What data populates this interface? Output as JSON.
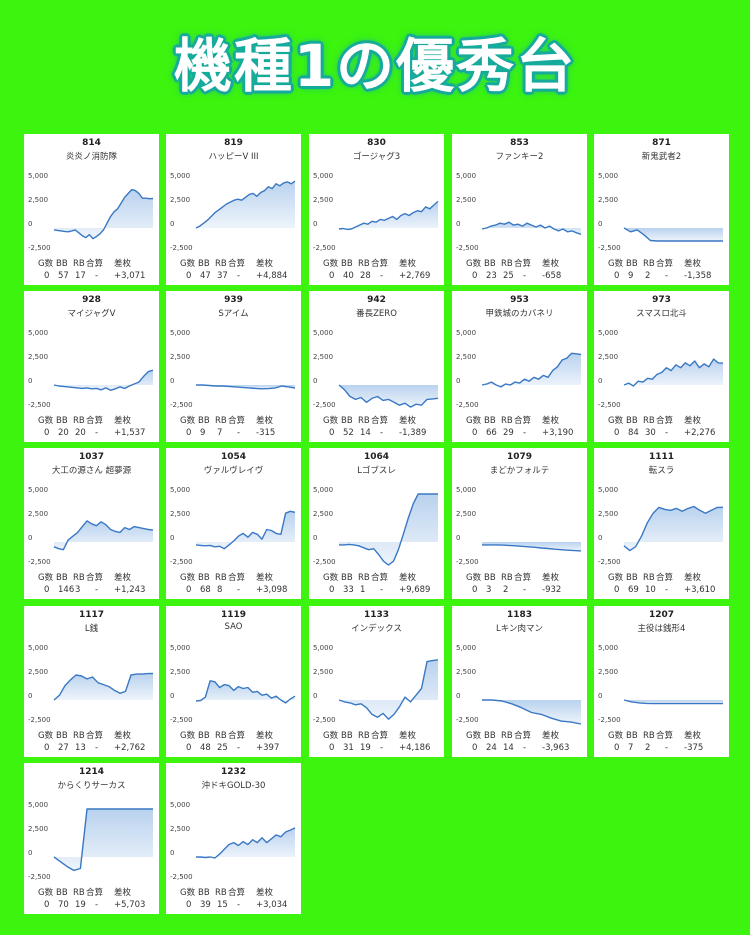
{
  "title": "機種1の優秀台",
  "table_headers": [
    "G数",
    "BB",
    "RB",
    "合算",
    "差枚"
  ],
  "colors": {
    "background": "#3cf40e",
    "line": "#3a78c4",
    "fill": "#cfe0f3",
    "panel": "#ffffff"
  },
  "chart_data": [
    {
      "type": "area",
      "number": "814",
      "name": "炎炎ノ消防隊",
      "g": "0",
      "bb": "57",
      "rb": "17",
      "gosan": "-",
      "samai": "+3,071",
      "ylim": [
        -2500,
        5000
      ],
      "yticks": [
        "5,000",
        "2,500",
        "0",
        "-2,500"
      ],
      "y": [
        -200,
        -250,
        -300,
        -350,
        -400,
        -300,
        -200,
        -500,
        -800,
        -1000,
        -700,
        -1100,
        -900,
        -600,
        -200,
        500,
        1200,
        1700,
        2000,
        2600,
        3200,
        3600,
        4000,
        3900,
        3600,
        3100,
        3100,
        3050,
        3071
      ]
    },
    {
      "type": "area",
      "number": "819",
      "name": "ハッピーV III",
      "g": "0",
      "bb": "47",
      "rb": "37",
      "gosan": "-",
      "samai": "+4,884",
      "ylim": [
        -2500,
        5000
      ],
      "yticks": [
        "5,000",
        "2,500",
        "0",
        "-2,500"
      ],
      "y": [
        0,
        200,
        500,
        800,
        1200,
        1600,
        1900,
        2200,
        2500,
        2700,
        2900,
        3000,
        2900,
        3200,
        3500,
        3600,
        3300,
        3700,
        3900,
        4300,
        4100,
        4600,
        4400,
        4700,
        4800,
        4600,
        4884
      ]
    },
    {
      "type": "area",
      "number": "830",
      "name": "ゴージャグ3",
      "g": "0",
      "bb": "40",
      "rb": "28",
      "gosan": "-",
      "samai": "+2,769",
      "ylim": [
        -2500,
        5000
      ],
      "yticks": [
        "5,000",
        "2,500",
        "0",
        "-2,500"
      ],
      "y": [
        -100,
        -50,
        -150,
        -100,
        100,
        300,
        500,
        400,
        700,
        600,
        900,
        800,
        1000,
        1200,
        900,
        1300,
        1500,
        1300,
        1600,
        1800,
        1700,
        2200,
        2000,
        2400,
        2769
      ]
    },
    {
      "type": "area",
      "number": "853",
      "name": "ファンキー2",
      "g": "0",
      "bb": "23",
      "rb": "25",
      "gosan": "-",
      "samai": "-658",
      "ylim": [
        -2500,
        5000
      ],
      "yticks": [
        "5,000",
        "2,500",
        "0",
        "-2,500"
      ],
      "y": [
        -100,
        0,
        200,
        300,
        500,
        400,
        600,
        300,
        400,
        200,
        500,
        300,
        100,
        300,
        0,
        200,
        -100,
        -300,
        -100,
        -400,
        -300,
        -500,
        -658
      ]
    },
    {
      "type": "area",
      "number": "871",
      "name": "新鬼武者2",
      "g": "0",
      "bb": "9",
      "rb": "2",
      "gosan": "-",
      "samai": "-1,358",
      "ylim": [
        -2500,
        5000
      ],
      "yticks": [
        "5,000",
        "2,500",
        "0",
        "-2,500"
      ],
      "y": [
        0,
        -400,
        -200,
        -700,
        -1300,
        -1358,
        -1358,
        -1358,
        -1358,
        -1358,
        -1358,
        -1358,
        -1358,
        -1358,
        -1358,
        -1358
      ]
    },
    {
      "type": "area",
      "number": "928",
      "name": "マイジャグV",
      "g": "0",
      "bb": "20",
      "rb": "20",
      "gosan": "-",
      "samai": "+1,537",
      "ylim": [
        -2500,
        5000
      ],
      "yticks": [
        "5,000",
        "2,500",
        "0",
        "-2,500"
      ],
      "y": [
        0,
        -100,
        -150,
        -200,
        -250,
        -300,
        -350,
        -300,
        -400,
        -350,
        -500,
        -300,
        -550,
        -400,
        -200,
        -350,
        -100,
        100,
        300,
        900,
        1400,
        1537
      ]
    },
    {
      "type": "area",
      "number": "939",
      "name": "Sアイム",
      "g": "0",
      "bb": "9",
      "rb": "7",
      "gosan": "-",
      "samai": "-315",
      "ylim": [
        -2500,
        5000
      ],
      "yticks": [
        "5,000",
        "2,500",
        "0",
        "-2,500"
      ],
      "y": [
        0,
        0,
        -50,
        -100,
        -100,
        -150,
        -200,
        -250,
        -300,
        -350,
        -400,
        -380,
        -300,
        -100,
        -200,
        -315
      ]
    },
    {
      "type": "area",
      "number": "942",
      "name": "番長ZERO",
      "g": "0",
      "bb": "52",
      "rb": "14",
      "gosan": "-",
      "samai": "-1,389",
      "ylim": [
        -2500,
        5000
      ],
      "yticks": [
        "5,000",
        "2,500",
        "0",
        "-2,500"
      ],
      "y": [
        0,
        -500,
        -1200,
        -1500,
        -1300,
        -1800,
        -1400,
        -1200,
        -1600,
        -1500,
        -1800,
        -2100,
        -1900,
        -2300,
        -2000,
        -2100,
        -1500,
        -1450,
        -1389
      ]
    },
    {
      "type": "area",
      "number": "953",
      "name": "甲鉄城のカバネリ",
      "g": "0",
      "bb": "66",
      "rb": "29",
      "gosan": "-",
      "samai": "+3,190",
      "ylim": [
        -2500,
        5000
      ],
      "yticks": [
        "5,000",
        "2,500",
        "0",
        "-2,500"
      ],
      "y": [
        0,
        100,
        300,
        0,
        -200,
        100,
        0,
        300,
        200,
        600,
        400,
        800,
        600,
        1000,
        800,
        1500,
        1900,
        2600,
        2800,
        3300,
        3250,
        3190
      ]
    },
    {
      "type": "area",
      "number": "973",
      "name": "スマスロ北斗",
      "g": "0",
      "bb": "84",
      "rb": "30",
      "gosan": "-",
      "samai": "+2,276",
      "ylim": [
        -2500,
        5000
      ],
      "yticks": [
        "5,000",
        "2,500",
        "0",
        "-2,500"
      ],
      "y": [
        0,
        200,
        -100,
        400,
        300,
        700,
        600,
        1100,
        1300,
        1800,
        1500,
        2100,
        1800,
        2300,
        2000,
        2500,
        1800,
        2200,
        1900,
        2700,
        2300,
        2276
      ]
    },
    {
      "type": "area",
      "number": "1037",
      "name": "大工の源さん 超夢源",
      "g": "0",
      "bb": "146",
      "rb": "3",
      "gosan": "-",
      "samai": "+1,243",
      "ylim": [
        -2500,
        5000
      ],
      "yticks": [
        "5,000",
        "2,500",
        "0",
        "-2,500"
      ],
      "y": [
        -500,
        -700,
        -800,
        200,
        600,
        1000,
        1600,
        2200,
        1900,
        1700,
        2100,
        1800,
        1300,
        1100,
        1000,
        1500,
        1300,
        1600,
        1500,
        1400,
        1300,
        1243
      ]
    },
    {
      "type": "area",
      "number": "1054",
      "name": "ヴァルヴレイヴ",
      "g": "0",
      "bb": "68",
      "rb": "8",
      "gosan": "-",
      "samai": "+3,098",
      "ylim": [
        -2500,
        5000
      ],
      "yticks": [
        "5,000",
        "2,500",
        "0",
        "-2,500"
      ],
      "y": [
        -300,
        -350,
        -400,
        -350,
        -500,
        -450,
        -700,
        -300,
        100,
        600,
        900,
        500,
        1000,
        800,
        300,
        1300,
        1200,
        900,
        800,
        3000,
        3200,
        3098
      ]
    },
    {
      "type": "area",
      "number": "1064",
      "name": "Lゴブスレ",
      "g": "0",
      "bb": "33",
      "rb": "1",
      "gosan": "-",
      "samai": "+9,689",
      "ylim": [
        -2500,
        5000
      ],
      "yticks": [
        "5,000",
        "2,500",
        "0",
        "-2,500"
      ],
      "y": [
        -300,
        -300,
        -250,
        -300,
        -400,
        -600,
        -800,
        -700,
        -1300,
        -2000,
        -2400,
        -2000,
        -800,
        800,
        2500,
        4000,
        5000,
        5000,
        5000,
        5000,
        5000
      ]
    },
    {
      "type": "area",
      "number": "1079",
      "name": "まどかフォルテ",
      "g": "0",
      "bb": "3",
      "rb": "2",
      "gosan": "-",
      "samai": "-932",
      "ylim": [
        -2500,
        5000
      ],
      "yticks": [
        "5,000",
        "2,500",
        "0",
        "-2,500"
      ],
      "y": [
        -300,
        -300,
        -300,
        -320,
        -350,
        -400,
        -450,
        -500,
        -550,
        -620,
        -680,
        -750,
        -800,
        -850,
        -900,
        -932
      ]
    },
    {
      "type": "area",
      "number": "1111",
      "name": "転スラ",
      "g": "0",
      "bb": "69",
      "rb": "10",
      "gosan": "-",
      "samai": "+3,610",
      "ylim": [
        -2500,
        5000
      ],
      "yticks": [
        "5,000",
        "2,500",
        "0",
        "-2,500"
      ],
      "y": [
        -400,
        -900,
        -500,
        600,
        2000,
        3000,
        3600,
        3400,
        3300,
        3500,
        3200,
        3500,
        3700,
        3300,
        3000,
        3300,
        3600,
        3610
      ]
    },
    {
      "type": "area",
      "number": "1117",
      "name": "L銭",
      "g": "0",
      "bb": "27",
      "rb": "13",
      "gosan": "-",
      "samai": "+2,762",
      "ylim": [
        -2500,
        5000
      ],
      "yticks": [
        "5,000",
        "2,500",
        "0",
        "-2,500"
      ],
      "y": [
        0,
        500,
        1500,
        2100,
        2600,
        2500,
        2200,
        2400,
        1800,
        1600,
        1400,
        1000,
        700,
        900,
        2600,
        2700,
        2700,
        2750,
        2762
      ]
    },
    {
      "type": "area",
      "number": "1119",
      "name": "SAO",
      "g": "0",
      "bb": "48",
      "rb": "25",
      "gosan": "-",
      "samai": "+397",
      "ylim": [
        -2500,
        5000
      ],
      "yticks": [
        "5,000",
        "2,500",
        "0",
        "-2,500"
      ],
      "y": [
        -100,
        -50,
        300,
        2000,
        1900,
        1300,
        1600,
        1500,
        1000,
        1400,
        1200,
        1300,
        800,
        900,
        500,
        600,
        200,
        400,
        0,
        -300,
        100,
        397
      ]
    },
    {
      "type": "area",
      "number": "1133",
      "name": "インデックス",
      "g": "0",
      "bb": "31",
      "rb": "19",
      "gosan": "-",
      "samai": "+4,186",
      "ylim": [
        -2500,
        5000
      ],
      "yticks": [
        "5,000",
        "2,500",
        "0",
        "-2,500"
      ],
      "y": [
        0,
        -200,
        -300,
        -500,
        -400,
        -800,
        -1500,
        -1800,
        -1400,
        -2000,
        -1500,
        -700,
        300,
        -200,
        500,
        1200,
        4000,
        4100,
        4186
      ]
    },
    {
      "type": "area",
      "number": "1183",
      "name": "Lキン肉マン",
      "g": "0",
      "bb": "24",
      "rb": "14",
      "gosan": "-",
      "samai": "-3,963",
      "ylim": [
        -2500,
        5000
      ],
      "yticks": [
        "5,000",
        "2,500",
        "0",
        "-2,500"
      ],
      "y": [
        0,
        0,
        -100,
        -400,
        -800,
        -1300,
        -1500,
        -1900,
        -2200,
        -2300,
        -2500
      ]
    },
    {
      "type": "area",
      "number": "1207",
      "name": "主役は銭形4",
      "g": "0",
      "bb": "7",
      "rb": "2",
      "gosan": "-",
      "samai": "-375",
      "ylim": [
        -2500,
        5000
      ],
      "yticks": [
        "5,000",
        "2,500",
        "0",
        "-2,500"
      ],
      "y": [
        0,
        -200,
        -300,
        -350,
        -375,
        -375,
        -375,
        -375,
        -375,
        -375,
        -375,
        -375,
        -375,
        -375
      ]
    },
    {
      "type": "area",
      "number": "1214",
      "name": "からくりサーカス",
      "g": "0",
      "bb": "70",
      "rb": "19",
      "gosan": "-",
      "samai": "+5,703",
      "ylim": [
        -2500,
        5000
      ],
      "yticks": [
        "5,000",
        "2,500",
        "0",
        "-2,500"
      ],
      "y": [
        0,
        -500,
        -1000,
        -1400,
        -1200,
        5000,
        5000,
        5000,
        5000,
        5000,
        5000,
        5000,
        5000,
        5000,
        5000,
        5000
      ]
    },
    {
      "type": "area",
      "number": "1232",
      "name": "沖ドキGOLD-30",
      "g": "0",
      "bb": "39",
      "rb": "15",
      "gosan": "-",
      "samai": "+3,034",
      "ylim": [
        -2500,
        5000
      ],
      "yticks": [
        "5,000",
        "2,500",
        "0",
        "-2,500"
      ],
      "y": [
        0,
        0,
        -50,
        0,
        -100,
        300,
        800,
        1300,
        1500,
        1200,
        1600,
        1300,
        1800,
        1500,
        2000,
        1500,
        1900,
        2300,
        2100,
        2600,
        2800,
        3034
      ]
    }
  ]
}
